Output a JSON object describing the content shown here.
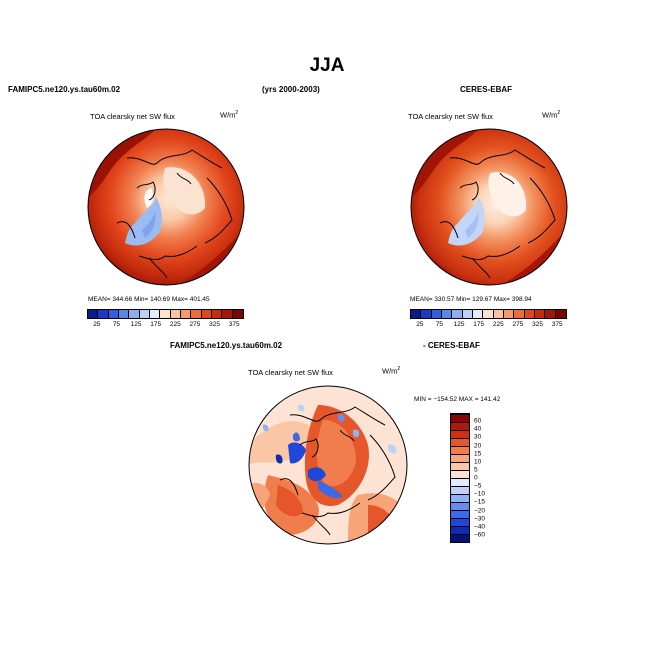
{
  "title": "JJA",
  "header": {
    "left": "FAMIPC5.ne120.ys.tau60m.02",
    "center": "(yrs 2000-2003)",
    "right": "CERES-EBAF"
  },
  "diff_header": {
    "left": "FAMIPC5.ne120.ys.tau60m.02",
    "right": "- CERES-EBAF"
  },
  "panels": [
    {
      "label": "TOA clearsky net SW flux",
      "unit": "W/m",
      "unit_sup": "2",
      "stats": "MEAN= 344.66   Min= 140.69   Max= 401.45",
      "mean": 344.66,
      "min": 140.69,
      "max": 401.45
    },
    {
      "label": "TOA clearsky net SW flux",
      "unit": "W/m",
      "unit_sup": "2",
      "stats": "MEAN= 330.57   Min= 129.67   Max= 398.94",
      "mean": 330.57,
      "min": 129.67,
      "max": 398.94
    }
  ],
  "diff_panel": {
    "label": "TOA clearsky net SW flux",
    "unit": "W/m",
    "unit_sup": "2",
    "stats": "MIN = −154.52  MAX = 141.42",
    "min": -154.52,
    "max": 141.42
  },
  "colorbar_main": {
    "ticks": [
      "25",
      "75",
      "125",
      "175",
      "225",
      "275",
      "325",
      "375"
    ],
    "colors": [
      "#0a1a8a",
      "#1b39c4",
      "#2f5ee0",
      "#5a86e8",
      "#8faef0",
      "#bed0f6",
      "#e4ecfa",
      "#fde2cf",
      "#fbc29d",
      "#f69a6a",
      "#ee6c3b",
      "#e1461c",
      "#c92a0e",
      "#a51508",
      "#7a0505"
    ]
  },
  "colorbar_diff": {
    "ticks": [
      "60",
      "40",
      "30",
      "20",
      "15",
      "10",
      "5",
      "0",
      "−5",
      "−10",
      "−15",
      "−20",
      "−30",
      "−40",
      "−60"
    ],
    "colors": [
      "#08107a",
      "#0f2bb0",
      "#1f47d8",
      "#3a6ae6",
      "#6290ee",
      "#8fb2f3",
      "#bdd2f8",
      "#e1ebfb",
      "#fde3d3",
      "#fbc6a6",
      "#f7a478",
      "#f17d4c",
      "#e5562a",
      "#ce3212",
      "#b01a08",
      "#870606"
    ]
  }
}
